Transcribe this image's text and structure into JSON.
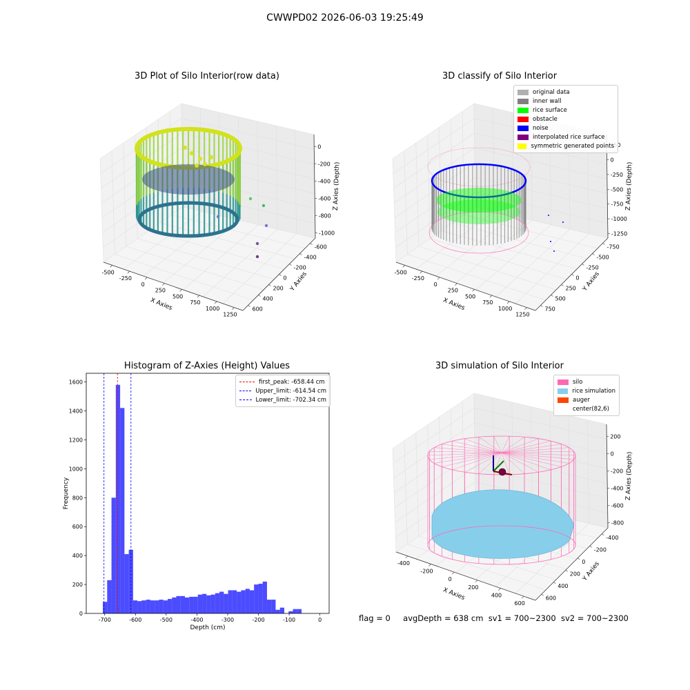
{
  "suptitle": "CWWPD02 2026-06-03 19:25:49",
  "footer": {
    "flag": "flag = 0",
    "avg_depth": "avgDepth = 638 cm",
    "sv1": "sv1 = 700~2300",
    "sv2": "sv2 = 700~2300"
  },
  "chart_data": [
    {
      "type": "scatter",
      "title": "3D Plot of Silo Interior(row data)",
      "xlabel": "X Axies",
      "ylabel": "Y Axies",
      "zlabel": "Z Axies (Depth)",
      "x_ticks": [
        -500,
        -250,
        0,
        250,
        500,
        750,
        1000,
        1250
      ],
      "y_ticks": [
        -600,
        -400,
        -200,
        0,
        200,
        400,
        600
      ],
      "z_ticks": [
        -1000,
        -800,
        -600,
        -400,
        -200,
        0
      ],
      "colormap": "viridis",
      "grid": true
    },
    {
      "type": "scatter",
      "title": "3D classify of Silo Interior",
      "xlabel": "X Axies",
      "ylabel": "Y Axies",
      "zlabel": "Z Axies (Depth)",
      "x_ticks": [
        -500,
        -250,
        0,
        250,
        500,
        750,
        1000,
        1250
      ],
      "y_ticks": [
        -750,
        -500,
        -250,
        0,
        250,
        500,
        750
      ],
      "z_ticks": [
        -1250,
        -1000,
        -750,
        -500,
        -250,
        0,
        250
      ],
      "legend": [
        {
          "label": "original data",
          "color": "#b0b0b0"
        },
        {
          "label": "inner wall",
          "color": "#808080"
        },
        {
          "label": "rice surface",
          "color": "#00ff00"
        },
        {
          "label": "obstacle",
          "color": "#ff0000"
        },
        {
          "label": "noise",
          "color": "#0000ff"
        },
        {
          "label": "interpolated rice surface",
          "color": "#800080"
        },
        {
          "label": "symmetric generated points",
          "color": "#ffff00"
        }
      ],
      "legend_position": "top-right",
      "grid": true
    },
    {
      "type": "bar",
      "title": "Histogram of Z-Axies (Height) Values",
      "xlabel": "Depth (cm)",
      "ylabel": "Frequency",
      "xlim": [
        -760,
        30
      ],
      "ylim": [
        0,
        1660
      ],
      "x_ticks": [
        -700,
        -600,
        -500,
        -400,
        -300,
        -200,
        -100,
        0
      ],
      "y_ticks": [
        0,
        200,
        400,
        600,
        800,
        1000,
        1200,
        1400,
        1600
      ],
      "bin_width": 14.05,
      "bin_start": -706,
      "bar_color": "#0000ff",
      "values": [
        80,
        230,
        800,
        1580,
        1420,
        410,
        440,
        90,
        85,
        90,
        95,
        90,
        90,
        95,
        90,
        100,
        110,
        120,
        120,
        110,
        115,
        115,
        130,
        135,
        125,
        130,
        140,
        150,
        135,
        160,
        160,
        150,
        160,
        170,
        160,
        200,
        205,
        220,
        95,
        95,
        25,
        40,
        0,
        15,
        30,
        30
      ],
      "vlines": [
        {
          "label": "first_peak: -658.44 cm",
          "x": -658.44,
          "color": "#ff0000"
        },
        {
          "label": "Upper_limit: -614.54 cm",
          "x": -614.54,
          "color": "#0000ff"
        },
        {
          "label": "Lower_limit: -702.34 cm",
          "x": -702.34,
          "color": "#0000ff"
        }
      ],
      "legend_position": "top-right"
    },
    {
      "type": "scatter",
      "title": "3D simulation of Silo Interior",
      "xlabel": "X Axies",
      "ylabel": "Y Axies",
      "zlabel": "Z Axies (Depth)",
      "x_ticks": [
        -400,
        -200,
        0,
        200,
        400,
        600
      ],
      "y_ticks": [
        -400,
        -200,
        0,
        200,
        400,
        600
      ],
      "z_ticks": [
        -800,
        -600,
        -400,
        -200,
        0,
        200
      ],
      "legend": [
        {
          "label": "silo",
          "color": "#ff69b4"
        },
        {
          "label": "rice simulation",
          "color": "#87ceeb"
        },
        {
          "label": "auger",
          "color": "#ff4500"
        },
        {
          "label": "center(82,6)",
          "color": ""
        }
      ],
      "legend_position": "top-right",
      "grid": true
    }
  ]
}
